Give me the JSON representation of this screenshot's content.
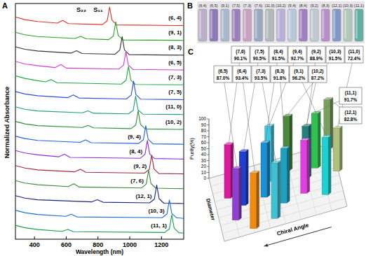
{
  "chart_data": [
    {
      "title": "A",
      "type": "line",
      "x_label": "Wavelength (nm)",
      "y_label": "Normalized Absorbance",
      "annotations": [
        "S₂₂",
        "S₁₁"
      ],
      "xlim": [
        280,
        1340
      ],
      "xticks": [
        400,
        600,
        800,
        1000,
        1200
      ],
      "ylim": [
        0,
        1
      ],
      "tick_labels": "x",
      "series": [
        {
          "name": "(6, 4)",
          "color": "#e0302a",
          "x": [
            280,
            340,
            420,
            543,
            578,
            613,
            828,
            858,
            873,
            888,
            918,
            1340
          ],
          "values": [
            0.47,
            0.33,
            0.23,
            0.15,
            0.29,
            0.12,
            0.07,
            0.27,
            1.0,
            0.31,
            0.05,
            0.02
          ]
        },
        {
          "name": "(9, 1)",
          "color": "#2aa02a",
          "x": [
            280,
            340,
            420,
            656,
            691,
            726,
            867,
            897,
            912,
            927,
            957,
            1340
          ],
          "values": [
            0.44,
            0.31,
            0.22,
            0.12,
            0.23,
            0.1,
            0.06,
            0.25,
            1.0,
            0.28,
            0.04,
            0.02
          ]
        },
        {
          "name": "(8, 3)",
          "color": "#333333",
          "x": [
            280,
            340,
            420,
            630,
            665,
            700,
            907,
            937,
            952,
            967,
            997,
            1340
          ],
          "values": [
            0.46,
            0.33,
            0.24,
            0.13,
            0.26,
            0.11,
            0.07,
            0.29,
            1.0,
            0.3,
            0.05,
            0.02
          ]
        },
        {
          "name": "(6, 5)",
          "color": "#d63ad6",
          "x": [
            280,
            340,
            420,
            531,
            566,
            601,
            931,
            961,
            976,
            991,
            1021,
            1340
          ],
          "values": [
            0.48,
            0.34,
            0.25,
            0.15,
            0.31,
            0.12,
            0.07,
            0.28,
            1.0,
            0.29,
            0.05,
            0.02
          ]
        },
        {
          "name": "(7, 3)",
          "color": "#22a83c",
          "x": [
            280,
            340,
            420,
            470,
            505,
            540,
            947,
            977,
            992,
            1007,
            1037,
            1340
          ],
          "values": [
            0.5,
            0.36,
            0.24,
            0.18,
            0.3,
            0.13,
            0.06,
            0.26,
            1.0,
            0.27,
            0.04,
            0.02
          ]
        },
        {
          "name": "(7, 5)",
          "color": "#2b4fd6",
          "x": [
            280,
            340,
            420,
            610,
            645,
            680,
            979,
            1009,
            1024,
            1039,
            1069,
            1340
          ],
          "values": [
            0.45,
            0.32,
            0.23,
            0.13,
            0.27,
            0.11,
            0.06,
            0.27,
            1.0,
            0.29,
            0.05,
            0.02
          ]
        },
        {
          "name": "(11, 0)",
          "color": "#1f9f7f",
          "x": [
            280,
            340,
            420,
            702,
            737,
            772,
            992,
            1022,
            1037,
            1052,
            1082,
            1340
          ],
          "values": [
            0.43,
            0.3,
            0.21,
            0.11,
            0.21,
            0.09,
            0.06,
            0.24,
            1.0,
            0.27,
            0.04,
            0.02
          ]
        },
        {
          "name": "(10, 2)",
          "color": "#2f8f3a",
          "x": [
            280,
            340,
            420,
            702,
            737,
            772,
            1008,
            1038,
            1053,
            1068,
            1098,
            1340
          ],
          "values": [
            0.44,
            0.31,
            0.22,
            0.12,
            0.23,
            0.1,
            0.06,
            0.25,
            1.0,
            0.28,
            0.04,
            0.02
          ]
        },
        {
          "name": "(9, 4)",
          "color": "#2060e0",
          "x": [
            280,
            340,
            420,
            687,
            722,
            757,
            1056,
            1086,
            1101,
            1116,
            1146,
            1340
          ],
          "values": [
            0.45,
            0.32,
            0.22,
            0.12,
            0.25,
            0.1,
            0.06,
            0.26,
            1.0,
            0.28,
            0.04,
            0.02
          ]
        },
        {
          "name": "(8, 4)",
          "color": "#8a2be2",
          "x": [
            280,
            340,
            420,
            554,
            589,
            624,
            1066,
            1096,
            1111,
            1126,
            1156,
            1340
          ],
          "values": [
            0.47,
            0.34,
            0.24,
            0.14,
            0.27,
            0.11,
            0.06,
            0.27,
            1.0,
            0.29,
            0.05,
            0.02
          ]
        },
        {
          "name": "(9, 2)",
          "color": "#a0283c",
          "x": [
            280,
            340,
            420,
            654,
            689,
            724,
            1093,
            1123,
            1138,
            1153,
            1183,
            1340
          ],
          "values": [
            0.46,
            0.33,
            0.23,
            0.13,
            0.26,
            0.11,
            0.06,
            0.26,
            1.0,
            0.28,
            0.04,
            0.02
          ]
        },
        {
          "name": "(7, 6)",
          "color": "#3a8a3a",
          "x": [
            280,
            340,
            420,
            613,
            648,
            683,
            1074,
            1104,
            1119,
            1134,
            1164,
            1340
          ],
          "values": [
            0.45,
            0.32,
            0.23,
            0.13,
            0.28,
            0.11,
            0.06,
            0.27,
            1.0,
            0.29,
            0.05,
            0.02
          ]
        },
        {
          "name": "(12, 1)",
          "color": "#1a237e",
          "x": [
            280,
            340,
            420,
            761,
            796,
            831,
            1125,
            1155,
            1170,
            1185,
            1215,
            1340
          ],
          "values": [
            0.44,
            0.31,
            0.22,
            0.11,
            0.22,
            0.09,
            0.06,
            0.25,
            1.0,
            0.28,
            0.04,
            0.02
          ]
        },
        {
          "name": "(10, 3)",
          "color": "#1e6fd0",
          "x": [
            280,
            340,
            420,
            597,
            632,
            667,
            1205,
            1235,
            1250,
            1265,
            1295,
            1340
          ],
          "values": [
            0.45,
            0.32,
            0.23,
            0.13,
            0.24,
            0.1,
            0.06,
            0.26,
            1.0,
            0.28,
            0.05,
            0.02
          ]
        },
        {
          "name": "(11, 1)",
          "color": "#16a04a",
          "x": [
            280,
            340,
            420,
            575,
            610,
            645,
            1220,
            1250,
            1265,
            1280,
            1310,
            1340
          ],
          "values": [
            0.44,
            0.31,
            0.22,
            0.12,
            0.22,
            0.1,
            0.06,
            0.25,
            1.0,
            0.28,
            0.05,
            0.03
          ]
        }
      ]
    },
    {
      "title": "C",
      "type": "bar",
      "y_label": "Purity(%)",
      "x_label": "Chiral Angle",
      "z_label": "Diameter",
      "categories": [
        "(7,6)",
        "(7,5)",
        "(8,4)",
        "(9,4)",
        "(9,2)",
        "(10,3)",
        "(11,0)",
        "(6,5)",
        "(6,4)",
        "(7,3)",
        "(8,3)",
        "(9,1)",
        "(10,2)",
        "(11,1)",
        "(12,1)"
      ],
      "values": [
        90.1,
        90.5,
        91.5,
        92.7,
        88.9,
        91.5,
        72.4,
        87.0,
        93.4,
        93.5,
        91.8,
        96.2,
        87.2,
        91.7,
        82.8
      ],
      "value_labels": [
        "90.1%",
        "90.5%",
        "91.5%",
        "92.7%",
        "88.9%",
        "91.5%",
        "72.4%",
        "87.0%",
        "93.4%",
        "93.5%",
        "91.8%",
        "96.2%",
        "87.2%",
        "91.7%",
        "82.8%"
      ],
      "colors": [
        "#d81b9b",
        "#1e3fd0",
        "#1e8fd0",
        "#3fc8e0",
        "#e040e0",
        "#4a8a3a",
        "#b0c080",
        "#9040d0",
        "#f08a10",
        "#40c0d0",
        "#20a0c0",
        "#20d0d0",
        "#208080",
        "#30c050",
        "#7aa060"
      ],
      "ylim": [
        0,
        100
      ],
      "yticks": [
        0,
        10,
        20,
        30,
        40,
        50,
        60,
        70,
        80,
        90,
        100
      ],
      "data_labels": true
    }
  ],
  "photo": {
    "title": "B",
    "labels": [
      "(6,4)",
      "(6,5)",
      "(9,1)",
      "(7,5)",
      "(7,3)",
      "(7,6)",
      "(11,0)",
      "(10,2)",
      "(9,4)",
      "(8,4)",
      "(9,2)",
      "(8,3)",
      "(12,1)",
      "(10,3)",
      "(11,1)"
    ],
    "colors": [
      "#b8b0c8",
      "#8a7ab8",
      "#a8b8cc",
      "#9a80b8",
      "#c8a0c0",
      "#9aa8c0",
      "#b0b8b8",
      "#b8b0d8",
      "#b8c8d8",
      "#a080c0",
      "#c0c8d0",
      "#b890c8",
      "#8098c8",
      "#b0c8b8",
      "#60b0a0"
    ]
  }
}
